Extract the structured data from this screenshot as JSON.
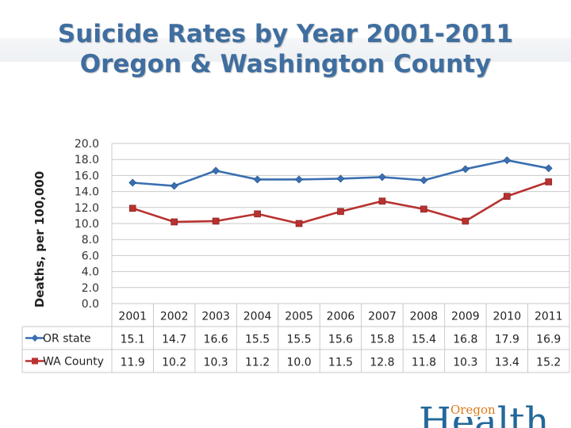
{
  "title": {
    "line1": "Suicide Rates by Year 2001-2011",
    "line2": "Oregon & Washington County"
  },
  "logo": {
    "small_text": "Oregon",
    "big_text": "Health"
  },
  "colors": {
    "or_state": "#3a6fb0",
    "wa_county": "#b83230",
    "title": "#3f6ea0",
    "grid": "#c9c9c9"
  },
  "chart_data": {
    "type": "line",
    "title": "Suicide Rates by Year 2001-2011 Oregon & Washington County",
    "xlabel": "",
    "ylabel": "Deaths, per 100,000",
    "ylim": [
      0,
      20
    ],
    "yticks": [
      "0.0",
      "2.0",
      "4.0",
      "6.0",
      "8.0",
      "10.0",
      "12.0",
      "14.0",
      "16.0",
      "18.0",
      "20.0"
    ],
    "categories": [
      "2001",
      "2002",
      "2003",
      "2004",
      "2005",
      "2006",
      "2007",
      "2008",
      "2009",
      "2010",
      "2011"
    ],
    "grid": true,
    "legend": "data table below chart",
    "series": [
      {
        "name": "OR state",
        "color": "#3a6fb0",
        "marker": "diamond",
        "values": [
          15.1,
          14.7,
          16.6,
          15.5,
          15.5,
          15.6,
          15.8,
          15.4,
          16.8,
          17.9,
          16.9
        ],
        "labels": [
          "15.1",
          "14.7",
          "16.6",
          "15.5",
          "15.5",
          "15.6",
          "15.8",
          "15.4",
          "16.8",
          "17.9",
          "16.9"
        ]
      },
      {
        "name": "WA County",
        "color": "#b83230",
        "marker": "square",
        "values": [
          11.9,
          10.2,
          10.3,
          11.2,
          10.0,
          11.5,
          12.8,
          11.8,
          10.3,
          13.4,
          15.2
        ],
        "labels": [
          "11.9",
          "10.2",
          "10.3",
          "11.2",
          "10.0",
          "11.5",
          "12.8",
          "11.8",
          "10.3",
          "13.4",
          "15.2"
        ]
      }
    ]
  }
}
